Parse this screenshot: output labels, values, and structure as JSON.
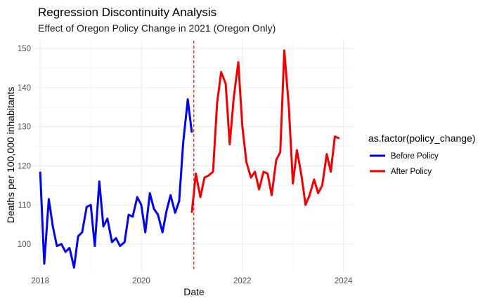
{
  "chart_data": {
    "type": "line",
    "title": "Regression Discontinuity Analysis",
    "subtitle": "Effect of Oregon Policy Change in 2021 (Oregon Only)",
    "xlabel": "Date",
    "ylabel": "Deaths per 100,000 inhabitants",
    "xlim": [
      2017.9,
      2024.2
    ],
    "ylim": [
      93,
      152
    ],
    "x_ticks": [
      2018,
      2020,
      2022,
      2024
    ],
    "x_tick_labels": [
      "2018",
      "2020",
      "2022",
      "2024"
    ],
    "y_ticks": [
      100,
      110,
      120,
      130,
      140,
      150
    ],
    "y_tick_labels": [
      "100",
      "110",
      "120",
      "130",
      "140",
      "150"
    ],
    "grid": true,
    "cutoff": 2021.04,
    "cutoff_color": "#cc0000",
    "legend": {
      "title": "as.factor(policy_change)",
      "position": "right"
    },
    "series": [
      {
        "name": "Before Policy",
        "color": "#0000ee",
        "x": [
          2018.0,
          2018.08,
          2018.17,
          2018.25,
          2018.33,
          2018.42,
          2018.5,
          2018.58,
          2018.67,
          2018.75,
          2018.83,
          2018.92,
          2019.0,
          2019.08,
          2019.17,
          2019.25,
          2019.33,
          2019.42,
          2019.5,
          2019.58,
          2019.67,
          2019.75,
          2019.83,
          2019.92,
          2020.0,
          2020.08,
          2020.17,
          2020.25,
          2020.33,
          2020.42,
          2020.5,
          2020.58,
          2020.67,
          2020.75,
          2020.83,
          2020.92,
          2021.0
        ],
        "y": [
          118.5,
          95.0,
          111.5,
          104.5,
          99.5,
          100.0,
          98.0,
          99.0,
          94.0,
          102.0,
          103.0,
          109.5,
          110.0,
          99.5,
          116.0,
          104.5,
          106.5,
          100.5,
          101.5,
          99.5,
          100.5,
          107.5,
          107.0,
          112.0,
          110.0,
          103.0,
          113.0,
          109.0,
          107.5,
          103.0,
          108.5,
          112.5,
          108.0,
          111.0,
          126.0,
          137.0,
          128.5
        ]
      },
      {
        "name": "After Policy",
        "color": "#ee0000",
        "x": [
          2021.0,
          2021.08,
          2021.17,
          2021.25,
          2021.33,
          2021.42,
          2021.5,
          2021.58,
          2021.67,
          2021.75,
          2021.83,
          2021.92,
          2022.0,
          2022.08,
          2022.17,
          2022.25,
          2022.33,
          2022.42,
          2022.5,
          2022.58,
          2022.67,
          2022.75,
          2022.83,
          2022.92,
          2023.0,
          2023.08,
          2023.17,
          2023.25,
          2023.33,
          2023.42,
          2023.5,
          2023.58,
          2023.67,
          2023.75,
          2023.83,
          2023.92
        ],
        "y": [
          108.0,
          118.0,
          112.0,
          117.0,
          117.5,
          118.5,
          136.0,
          144.0,
          141.0,
          125.5,
          137.5,
          146.5,
          130.0,
          121.0,
          117.0,
          118.5,
          114.0,
          118.5,
          118.0,
          112.5,
          121.5,
          123.5,
          149.5,
          135.0,
          115.5,
          124.0,
          117.5,
          110.0,
          112.5,
          116.5,
          113.0,
          115.0,
          123.0,
          118.5,
          127.5,
          127.0
        ]
      }
    ]
  }
}
